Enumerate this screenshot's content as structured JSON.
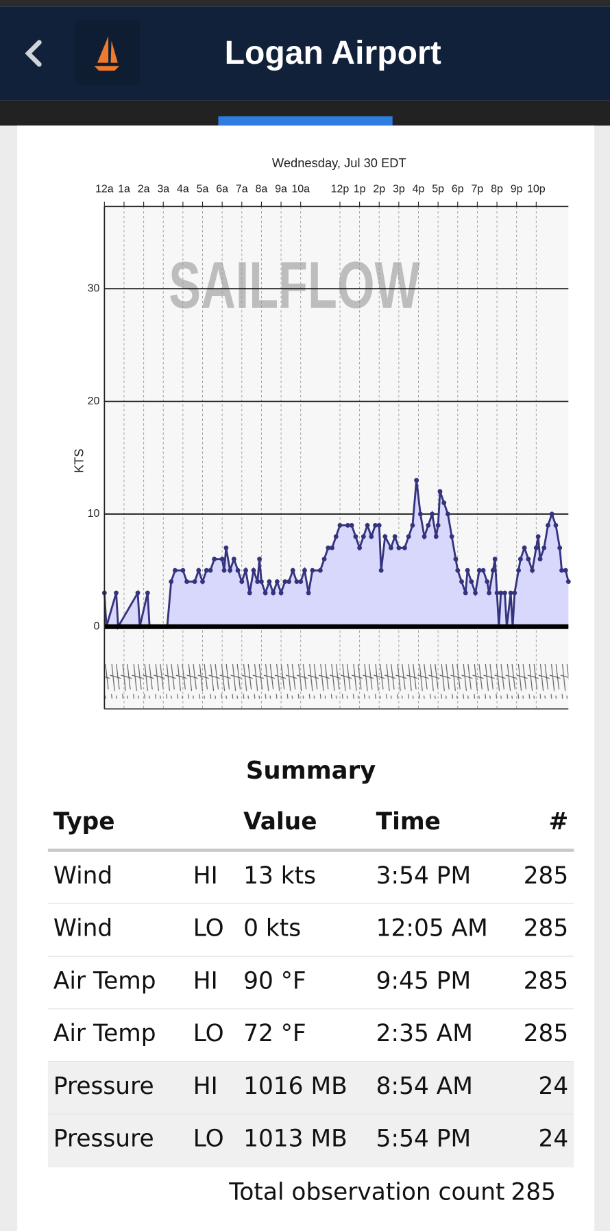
{
  "header": {
    "title": "Logan Airport"
  },
  "chart_data": {
    "type": "area",
    "title": "Wednesday, Jul 30 EDT",
    "y_label": "KTS",
    "watermark": "SAILFLOW",
    "color": "#34347e",
    "fill": "#d8d8fc",
    "x": [
      0,
      0.1,
      0.6,
      0.7,
      1.7,
      1.8,
      2.2,
      2.3,
      3.2,
      3.4,
      3.6,
      4.0,
      4.2,
      4.6,
      4.8,
      5.0,
      5.2,
      5.4,
      5.6,
      6.0,
      6.1,
      6.2,
      6.4,
      6.6,
      6.8,
      7.0,
      7.2,
      7.4,
      7.6,
      7.8,
      7.9,
      8.0,
      8.2,
      8.4,
      8.6,
      8.8,
      9.0,
      9.2,
      9.4,
      9.6,
      9.8,
      10.0,
      10.2,
      10.4,
      10.6,
      11.0,
      11.2,
      11.4,
      11.6,
      11.8,
      12.0,
      12.4,
      12.6,
      12.8,
      13.0,
      13.2,
      13.4,
      13.6,
      13.8,
      14.0,
      14.1,
      14.3,
      14.6,
      14.8,
      15.0,
      15.3,
      15.5,
      15.7,
      15.9,
      16.1,
      16.3,
      16.5,
      16.7,
      16.9,
      17.0,
      17.1,
      17.3,
      17.5,
      17.7,
      17.9,
      18.0,
      18.2,
      18.4,
      18.5,
      18.7,
      18.9,
      19.1,
      19.3,
      19.5,
      19.6,
      19.8,
      19.9,
      20.0,
      20.1,
      20.2,
      20.4,
      20.5,
      20.7,
      20.8,
      20.9,
      21.1,
      21.2,
      21.4,
      21.6,
      21.8,
      22.0,
      22.1,
      22.2,
      22.4,
      22.6,
      22.8,
      23.0,
      23.2,
      23.3,
      23.5,
      23.64
    ],
    "values": [
      3,
      0,
      3,
      0,
      3,
      0,
      3,
      0,
      0,
      4,
      5,
      5,
      4,
      4,
      5,
      4,
      5,
      5,
      6,
      6,
      5,
      7,
      5,
      6,
      5,
      4,
      5,
      3,
      5,
      4,
      6,
      4,
      3,
      4,
      3,
      4,
      3,
      4,
      4,
      5,
      4,
      4,
      5,
      3,
      5,
      5,
      6,
      7,
      7,
      8,
      9,
      9,
      9,
      8,
      7,
      8,
      9,
      8,
      9,
      9,
      5,
      8,
      7,
      8,
      7,
      7,
      8,
      9,
      13,
      10,
      8,
      9,
      10,
      8,
      9,
      12,
      11,
      10,
      8,
      6,
      5,
      4,
      3,
      5,
      4,
      3,
      5,
      5,
      4,
      3,
      5,
      6,
      3,
      0,
      3,
      3,
      0,
      3,
      0,
      3,
      5,
      6,
      7,
      6,
      5,
      7,
      8,
      6,
      7,
      9,
      10,
      9,
      7,
      5,
      5,
      4
    ],
    "xlim": [
      0,
      23.64
    ],
    "xticks": [
      {
        "value": 0,
        "label": "12a"
      },
      {
        "value": 1,
        "label": "1a"
      },
      {
        "value": 2,
        "label": "2a"
      },
      {
        "value": 3,
        "label": "3a"
      },
      {
        "value": 4,
        "label": "4a"
      },
      {
        "value": 5,
        "label": "5a"
      },
      {
        "value": 6,
        "label": "6a"
      },
      {
        "value": 7,
        "label": "7a"
      },
      {
        "value": 8,
        "label": "8a"
      },
      {
        "value": 9,
        "label": "9a"
      },
      {
        "value": 10,
        "label": "10a"
      },
      {
        "value": 12,
        "label": "12p"
      },
      {
        "value": 13,
        "label": "1p"
      },
      {
        "value": 14,
        "label": "2p"
      },
      {
        "value": 15,
        "label": "3p"
      },
      {
        "value": 16,
        "label": "4p"
      },
      {
        "value": 17,
        "label": "5p"
      },
      {
        "value": 18,
        "label": "6p"
      },
      {
        "value": 19,
        "label": "7p"
      },
      {
        "value": 20,
        "label": "8p"
      },
      {
        "value": 21,
        "label": "9p"
      },
      {
        "value": 22,
        "label": "10p"
      }
    ],
    "ylim": [
      -7.3,
      37.3
    ],
    "yticks": [
      0,
      10,
      20,
      30
    ],
    "grid": true
  },
  "summary": {
    "title": "Summary",
    "header": [
      "Type",
      "Value",
      "Time",
      "#"
    ],
    "rows": [
      [
        "Wind",
        "HI",
        "13 kts",
        "3:54 PM",
        285
      ],
      [
        "Wind",
        "LO",
        "0 kts",
        "12:05 AM",
        285
      ],
      [
        "Air Temp",
        "HI",
        "90 °F",
        "9:45 PM",
        285
      ],
      [
        "Air Temp",
        "LO",
        "72 °F",
        "2:35 AM",
        285
      ],
      [
        "Pressure",
        "HI",
        "1016 MB",
        "8:54 AM",
        24
      ],
      [
        "Pressure",
        "LO",
        "1013 MB",
        "5:54 PM",
        24
      ]
    ],
    "total_label": "Total observation count",
    "total": 285
  }
}
